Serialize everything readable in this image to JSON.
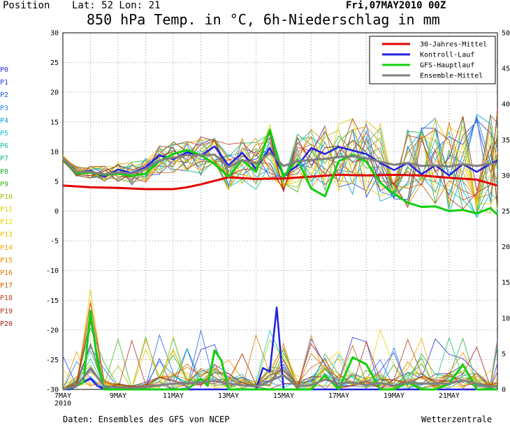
{
  "header": {
    "position_label": "Position",
    "latlon": "Lat: 52 Lon: 21",
    "date": "Fri,07MAY2010 00Z",
    "title": "850 hPa Temp. in °C, 6h-Niederschlag in mm"
  },
  "footer": {
    "source": "Daten: Ensembles des GFS von NCEP",
    "brand": "Wetterzentrale"
  },
  "members": [
    "P0",
    "P1",
    "P2",
    "P3",
    "P4",
    "P5",
    "P6",
    "P7",
    "P8",
    "P9",
    "P10",
    "P11",
    "P12",
    "P13",
    "P14",
    "P15",
    "P16",
    "P17",
    "P18",
    "P19",
    "P20"
  ],
  "member_colors": [
    "#3030d0",
    "#2040e0",
    "#1e60e8",
    "#1a80e8",
    "#10a0d8",
    "#10c0c8",
    "#10c0a0",
    "#10c070",
    "#20b040",
    "#40b020",
    "#a0c000",
    "#e0d000",
    "#f0d000",
    "#f0c000",
    "#f0a800",
    "#e89000",
    "#d87800",
    "#c86000",
    "#c04020",
    "#b03020",
    "#a02020"
  ],
  "chart_data": {
    "type": "line",
    "x_tick_labels": [
      "7MAY\n2010",
      "9MAY",
      "11MAY",
      "13MAY",
      "15MAY",
      "17MAY",
      "19MAY",
      "21MAY"
    ],
    "x_tick_days": [
      0,
      2,
      4,
      6,
      8,
      10,
      12,
      14
    ],
    "x_range_days": [
      0,
      15.75
    ],
    "y_left": {
      "min": -30,
      "max": 30,
      "step": 5,
      "unit": "°C"
    },
    "y_right": {
      "min": 0,
      "max": 50,
      "step": 5,
      "unit": "mm"
    },
    "grid": true,
    "legend_position": "top-right",
    "legend": [
      {
        "label": "30-Jahres-Mittel",
        "color": "#e00000"
      },
      {
        "label": "Kontroll-Lauf",
        "color": "#2020e0"
      },
      {
        "label": "GFS-Hauptlauf",
        "color": "#10d010"
      },
      {
        "label": "Ensemble-Mittel",
        "color": "#808080"
      }
    ],
    "series": [
      {
        "name": "30-Jahres-Mittel",
        "color": "#e00000",
        "x": [
          0,
          1,
          2,
          3,
          4,
          4.5,
          5,
          5.5,
          6,
          7,
          8,
          9,
          10,
          11,
          12,
          13,
          14,
          15,
          15.75
        ],
        "y": [
          4.3,
          4.0,
          3.9,
          3.7,
          3.7,
          4.0,
          4.5,
          5.1,
          5.7,
          5.4,
          5.5,
          5.8,
          6.1,
          6.0,
          6.1,
          6.0,
          5.6,
          5.3,
          4.3
        ]
      },
      {
        "name": "Kontroll-Lauf",
        "color": "#2020e0",
        "x": [
          0,
          0.5,
          1,
          1.5,
          2,
          2.5,
          3,
          3.5,
          4,
          4.5,
          5,
          5.5,
          6,
          6.5,
          7,
          7.5,
          8,
          8.5,
          9,
          9.5,
          10,
          10.5,
          11,
          11.5,
          12,
          12.5,
          13,
          13.5,
          14,
          14.5,
          15,
          15.5,
          15.75
        ],
        "y": [
          8.8,
          6.5,
          6.8,
          5.8,
          7,
          6.4,
          7.4,
          9.4,
          8.7,
          9.9,
          9.3,
          10.9,
          7.7,
          9.8,
          7.1,
          10.6,
          6.1,
          7.6,
          10.6,
          9.6,
          10.8,
          10.2,
          9.6,
          8.1,
          6.9,
          8.1,
          6.2,
          7.7,
          6.0,
          7.9,
          6.6,
          8.0,
          8.5
        ]
      },
      {
        "name": "GFS-Hauptlauf",
        "color": "#10d010",
        "x": [
          0,
          0.5,
          1,
          1.5,
          2,
          2.5,
          3,
          3.5,
          4,
          4.5,
          5,
          5.5,
          6,
          6.5,
          7,
          7.5,
          8,
          8.5,
          9,
          9.5,
          10,
          10.5,
          11,
          11.5,
          12,
          12.5,
          13,
          13.5,
          14,
          14.5,
          15,
          15.5,
          15.75
        ],
        "y": [
          8.8,
          6.3,
          6.5,
          6.1,
          6.3,
          5.9,
          6.3,
          8.4,
          9.6,
          10.3,
          9.4,
          7.9,
          5.8,
          8.6,
          6.6,
          13.7,
          5.8,
          8.7,
          3.8,
          2.5,
          8.4,
          9.5,
          8.3,
          4.8,
          2.9,
          1.4,
          0.7,
          0.8,
          0.0,
          0.2,
          -0.4,
          0.5,
          -0.6
        ]
      },
      {
        "name": "Ensemble-Mittel",
        "color": "#808080",
        "x": [
          0,
          0.5,
          1,
          1.5,
          2,
          2.5,
          3,
          3.5,
          4,
          4.5,
          5,
          5.5,
          6,
          6.5,
          7,
          7.5,
          8,
          8.5,
          9,
          9.5,
          10,
          10.5,
          11,
          11.5,
          12,
          12.5,
          13,
          13.5,
          14,
          14.5,
          15,
          15.5,
          15.75
        ],
        "y": [
          8.9,
          6.6,
          6.6,
          6.2,
          6.5,
          6.3,
          7.1,
          8.5,
          9.0,
          9.4,
          9.4,
          9.5,
          7.4,
          8.6,
          8.0,
          9.8,
          7.6,
          8.4,
          8.6,
          8.8,
          9.1,
          9.2,
          8.9,
          8.3,
          7.8,
          8.1,
          7.6,
          7.7,
          7.5,
          7.9,
          7.6,
          8.0,
          8.1
        ]
      }
    ],
    "precip_series": [
      {
        "name": "Kontroll-Lauf",
        "color": "#2020e0",
        "x": [
          0,
          0.25,
          0.5,
          0.75,
          1,
          1.25,
          1.5,
          2,
          2.5,
          3,
          3.5,
          4,
          4.5,
          5,
          5.5,
          6,
          6.5,
          7,
          7.25,
          7.5,
          7.75,
          8,
          8.25,
          8.5,
          9,
          9.5,
          10,
          10.5,
          11,
          11.5,
          12,
          12.5,
          13,
          13.5,
          14,
          14.5,
          15,
          15.5,
          15.75
        ],
        "y": [
          0,
          0,
          0.5,
          1,
          1.5,
          0.5,
          0,
          0,
          0,
          0,
          0,
          0,
          0,
          0,
          0,
          0,
          0,
          0,
          3,
          2.5,
          11.5,
          0,
          0,
          0,
          0,
          0,
          0,
          0,
          0,
          0,
          0,
          0,
          0,
          0,
          0,
          0,
          0,
          0,
          0
        ]
      },
      {
        "name": "GFS-Hauptlauf",
        "color": "#10d010",
        "x": [
          0,
          0.25,
          0.5,
          0.75,
          1,
          1.25,
          1.5,
          2,
          2.5,
          3,
          3.5,
          4,
          4.5,
          5,
          5.25,
          5.5,
          5.75,
          6,
          6.5,
          7,
          7.5,
          8,
          8.5,
          9,
          9.5,
          10,
          10.5,
          11,
          11.5,
          12,
          12.5,
          13,
          13.5,
          14,
          14.5,
          15,
          15.5,
          15.75
        ],
        "y": [
          0,
          0.2,
          0.5,
          1,
          11,
          4,
          0,
          0,
          0,
          0,
          0,
          0,
          0,
          1.5,
          0.5,
          5.5,
          4,
          0,
          0,
          0,
          0,
          0,
          0,
          0,
          2,
          0,
          4.5,
          3.5,
          0,
          0,
          1,
          0,
          0,
          0.8,
          3.5,
          0,
          0,
          0
        ]
      },
      {
        "name": "Ensemble-Mittel",
        "color": "#808080",
        "x": [
          0,
          0.5,
          1,
          1.5,
          2,
          2.5,
          3,
          3.5,
          4,
          4.5,
          5,
          5.5,
          6,
          6.5,
          7,
          7.5,
          8,
          8.5,
          9,
          9.5,
          10,
          10.5,
          11,
          11.5,
          12,
          12.5,
          13,
          13.5,
          14,
          14.5,
          15,
          15.5,
          15.75
        ],
        "y": [
          0,
          0.5,
          3,
          0.4,
          0.3,
          0.2,
          0.3,
          0.6,
          0.8,
          0.8,
          1,
          1.2,
          0.8,
          0.6,
          0.4,
          1.2,
          2,
          0.4,
          0.6,
          1.4,
          0.8,
          1,
          0.6,
          0.9,
          0.5,
          1,
          0.8,
          0.8,
          0.8,
          1.3,
          0.8,
          0.4,
          0.4
        ]
      }
    ]
  }
}
